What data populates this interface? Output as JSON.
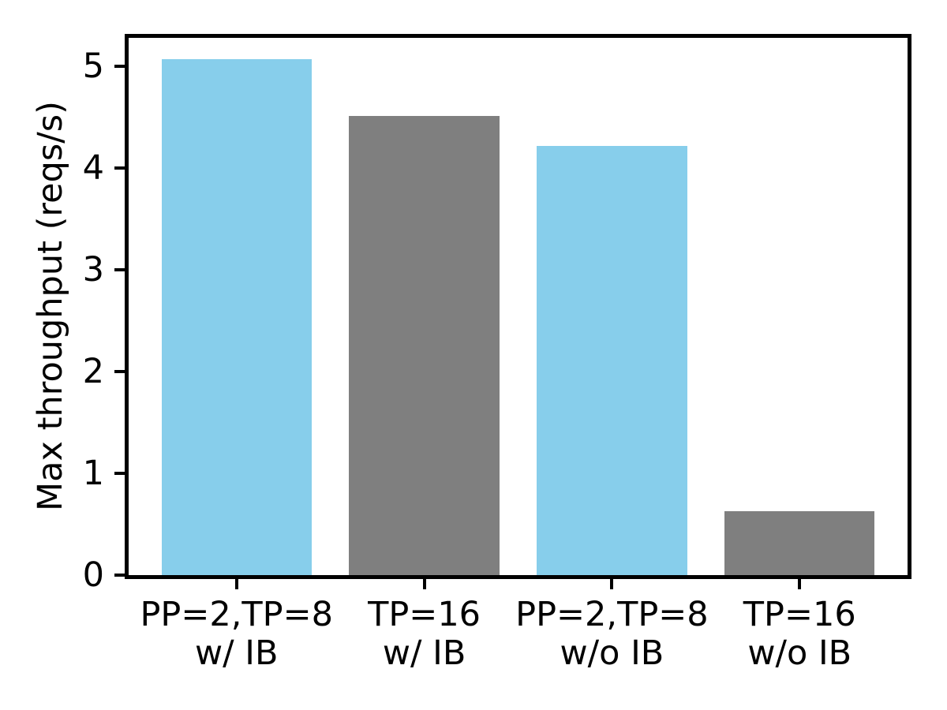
{
  "chart_data": {
    "type": "bar",
    "title": "",
    "xlabel": "",
    "ylabel": "Max throughput (reqs/s)",
    "categories": [
      "PP=2,TP=8 w/ IB",
      "TP=16 w/ IB",
      "PP=2,TP=8 w/o IB",
      "TP=16 w/o IB"
    ],
    "category_lines": [
      [
        "PP=2,TP=8",
        "w/ IB"
      ],
      [
        "TP=16",
        "w/ IB"
      ],
      [
        "PP=2,TP=8",
        "w/o IB"
      ],
      [
        "TP=16",
        "w/o IB"
      ]
    ],
    "values": [
      5.07,
      4.51,
      4.22,
      0.63
    ],
    "bar_colors": [
      "#87CEEB",
      "#7F7F7F",
      "#87CEEB",
      "#7F7F7F"
    ],
    "yticks": [
      0,
      1,
      2,
      3,
      4,
      5
    ],
    "ylim": [
      0,
      5.28
    ],
    "grid": false,
    "legend": "none"
  },
  "colors": {
    "skyblue": "#87CEEB",
    "gray": "#7F7F7F",
    "axis": "#000000",
    "background": "#ffffff",
    "text": "#000000"
  }
}
